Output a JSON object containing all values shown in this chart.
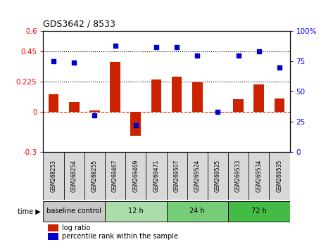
{
  "title": "GDS3642 / 8533",
  "samples": [
    "GSM268253",
    "GSM268254",
    "GSM268255",
    "GSM269467",
    "GSM269469",
    "GSM269471",
    "GSM269507",
    "GSM269524",
    "GSM269525",
    "GSM269533",
    "GSM269534",
    "GSM269535"
  ],
  "log_ratio": [
    0.13,
    0.07,
    0.01,
    0.37,
    -0.18,
    0.24,
    0.26,
    0.22,
    -0.01,
    0.09,
    0.2,
    0.1
  ],
  "percentile_rank": [
    75,
    74,
    30,
    88,
    22,
    87,
    87,
    80,
    33,
    80,
    83,
    70
  ],
  "time_groups": [
    {
      "label": "baseline control",
      "start": 0,
      "end": 3,
      "color": "#c8c8c8"
    },
    {
      "label": "12 h",
      "start": 3,
      "end": 6,
      "color": "#aaddaa"
    },
    {
      "label": "24 h",
      "start": 6,
      "end": 9,
      "color": "#77cc77"
    },
    {
      "label": "72 h",
      "start": 9,
      "end": 12,
      "color": "#44bb44"
    }
  ],
  "bar_color": "#cc2200",
  "dot_color": "#0000cc",
  "left_ylim": [
    -0.3,
    0.6
  ],
  "right_ylim": [
    0,
    100
  ],
  "left_yticks": [
    -0.3,
    0,
    0.225,
    0.45,
    0.6
  ],
  "left_yticklabels": [
    "-0.3",
    "0",
    "0.225",
    "0.45",
    "0.6"
  ],
  "right_yticks": [
    0,
    25,
    50,
    75,
    100
  ],
  "right_yticklabels": [
    "0",
    "25",
    "50",
    "75",
    "100%"
  ],
  "hlines": [
    0.225,
    0.45
  ],
  "background_color": "#ffffff"
}
